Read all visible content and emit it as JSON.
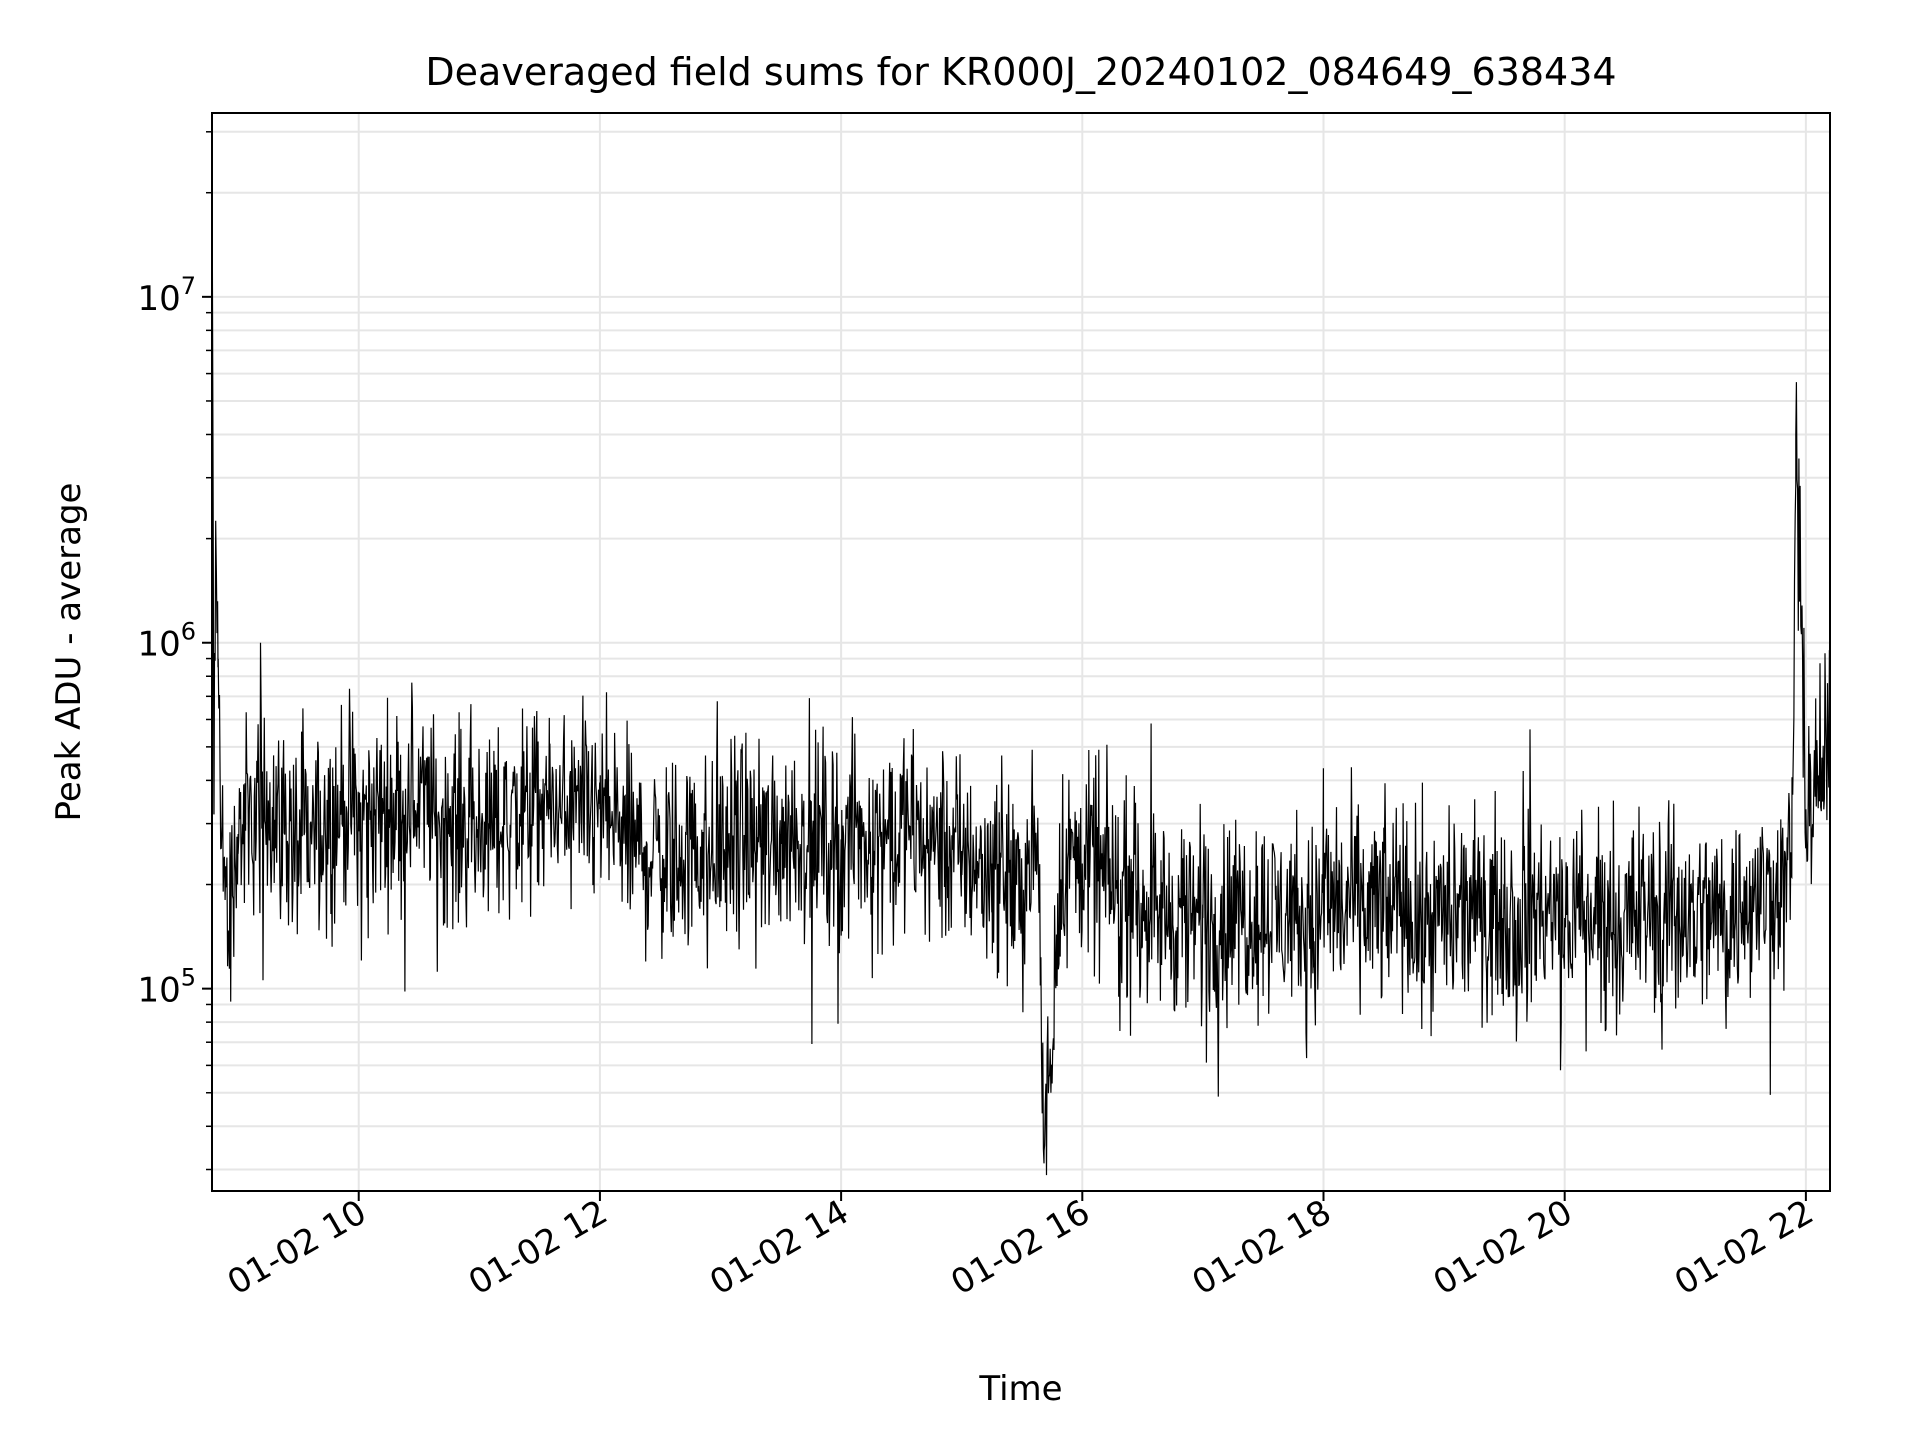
{
  "chart_data": {
    "type": "line",
    "title": "Deaveraged field sums for KR000J_20240102_084649_638434",
    "xlabel": "Time",
    "ylabel": "Peak ADU - average",
    "yscale": "log",
    "grid": true,
    "grid_color": "#e6e6e6",
    "line_color": "#000000",
    "xlim": [
      "2024-01-02 08:47",
      "2024-01-02 22:12"
    ],
    "ylim": [
      26000,
      34000000
    ],
    "x_ticks": [
      {
        "t": "2024-01-02 10:00",
        "label": "01-02 10"
      },
      {
        "t": "2024-01-02 12:00",
        "label": "01-02 12"
      },
      {
        "t": "2024-01-02 14:00",
        "label": "01-02 14"
      },
      {
        "t": "2024-01-02 16:00",
        "label": "01-02 16"
      },
      {
        "t": "2024-01-02 18:00",
        "label": "01-02 18"
      },
      {
        "t": "2024-01-02 20:00",
        "label": "01-02 20"
      },
      {
        "t": "2024-01-02 22:00",
        "label": "01-02 22"
      }
    ],
    "y_ticks": [
      {
        "value": 100000,
        "base": "10",
        "exp": "5"
      },
      {
        "value": 1000000,
        "base": "10",
        "exp": "6"
      },
      {
        "value": 10000000,
        "base": "10",
        "exp": "7"
      }
    ],
    "series": [
      {
        "x": [
          "2024-01-02 08:47",
          "2024-01-02 08:48",
          "2024-01-02 08:49",
          "2024-01-02 08:50",
          "2024-01-02 08:52",
          "2024-01-02 08:55",
          "2024-01-02 09:00",
          "2024-01-02 09:15",
          "2024-01-02 09:30",
          "2024-01-02 09:45",
          "2024-01-02 09:53",
          "2024-01-02 10:00",
          "2024-01-02 10:15",
          "2024-01-02 10:27",
          "2024-01-02 10:45",
          "2024-01-02 11:05",
          "2024-01-02 11:20",
          "2024-01-02 11:35",
          "2024-01-02 11:50",
          "2024-01-02 12:00",
          "2024-01-02 12:20",
          "2024-01-02 12:40",
          "2024-01-02 13:00",
          "2024-01-02 13:30",
          "2024-01-02 14:00",
          "2024-01-02 14:30",
          "2024-01-02 15:00",
          "2024-01-02 15:15",
          "2024-01-02 15:30",
          "2024-01-02 15:38",
          "2024-01-02 15:41",
          "2024-01-02 15:50",
          "2024-01-02 16:00",
          "2024-01-02 16:30",
          "2024-01-02 16:45",
          "2024-01-02 17:00",
          "2024-01-02 17:30",
          "2024-01-02 17:55",
          "2024-01-02 18:00",
          "2024-01-02 18:30",
          "2024-01-02 19:00",
          "2024-01-02 19:30",
          "2024-01-02 20:00",
          "2024-01-02 20:30",
          "2024-01-02 21:00",
          "2024-01-02 21:30",
          "2024-01-02 21:45",
          "2024-01-02 21:53",
          "2024-01-02 21:55",
          "2024-01-02 22:00",
          "2024-01-02 22:05",
          "2024-01-02 22:12"
        ],
        "y": [
          27000000,
          320000,
          1900000,
          850000,
          300000,
          140000,
          280000,
          350000,
          250000,
          300000,
          340000,
          310000,
          330000,
          360000,
          300000,
          290000,
          320000,
          330000,
          300000,
          330000,
          250000,
          240000,
          260000,
          280000,
          270000,
          290000,
          250000,
          230000,
          200000,
          260000,
          34000,
          240000,
          230000,
          180000,
          160000,
          160000,
          170000,
          150000,
          180000,
          170000,
          160000,
          170000,
          160000,
          170000,
          160000,
          170000,
          200000,
          210000,
          4000000,
          330000,
          400000,
          450000
        ]
      }
    ]
  }
}
